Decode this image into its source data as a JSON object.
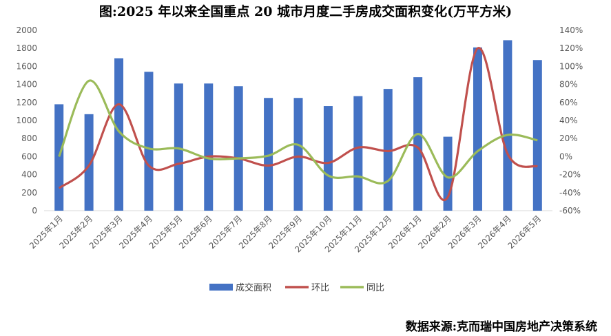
{
  "chart_data": {
    "type": "bar",
    "title": "图:2025 年以来全国重点 20 城市月度二手房成交面积变化(万平方米)",
    "categories": [
      "2025年1月",
      "2025年2月",
      "2025年3月",
      "2025年4月",
      "2025年5月",
      "2025年6月",
      "2025年7月",
      "2025年8月",
      "2025年9月",
      "2025年10月",
      "2025年11月",
      "2025年12月",
      "2026年1月",
      "2026年2月",
      "2026年3月",
      "2026年4月",
      "2026年5月"
    ],
    "series": [
      {
        "name": "成交面积",
        "type": "bar",
        "axis": "left",
        "color": "#4472C4",
        "values": [
          1180,
          1070,
          1690,
          1540,
          1410,
          1410,
          1380,
          1250,
          1250,
          1160,
          1270,
          1350,
          1480,
          820,
          1810,
          1890,
          1670
        ]
      },
      {
        "name": "环比",
        "type": "line",
        "axis": "right",
        "color": "#C0504D",
        "values": [
          -35,
          -10,
          58,
          -10,
          -8,
          0,
          -2,
          -10,
          0,
          -7,
          10,
          6,
          10,
          -45,
          120,
          3,
          -11
        ]
      },
      {
        "name": "同比",
        "type": "line",
        "axis": "right",
        "color": "#9BBB59",
        "values": [
          0,
          84,
          28,
          9,
          9,
          -2,
          -2,
          1,
          13,
          -21,
          -22,
          -27,
          25,
          -23,
          6,
          24,
          18
        ]
      }
    ],
    "left_axis": {
      "ylim": [
        0,
        2000
      ],
      "ticks": [
        "0",
        "200",
        "400",
        "600",
        "800",
        "1000",
        "1200",
        "1400",
        "1600",
        "1800",
        "2000"
      ]
    },
    "right_axis": {
      "ylim": [
        -60,
        140
      ],
      "ticks": [
        "-60%",
        "-40%",
        "-20%",
        "0%",
        "20%",
        "40%",
        "60%",
        "80%",
        "100%",
        "120%",
        "140%"
      ]
    },
    "legend": {
      "position": "bottom"
    },
    "grid": false
  },
  "source_text": "数据来源:克而瑞中国房地产决策系统"
}
